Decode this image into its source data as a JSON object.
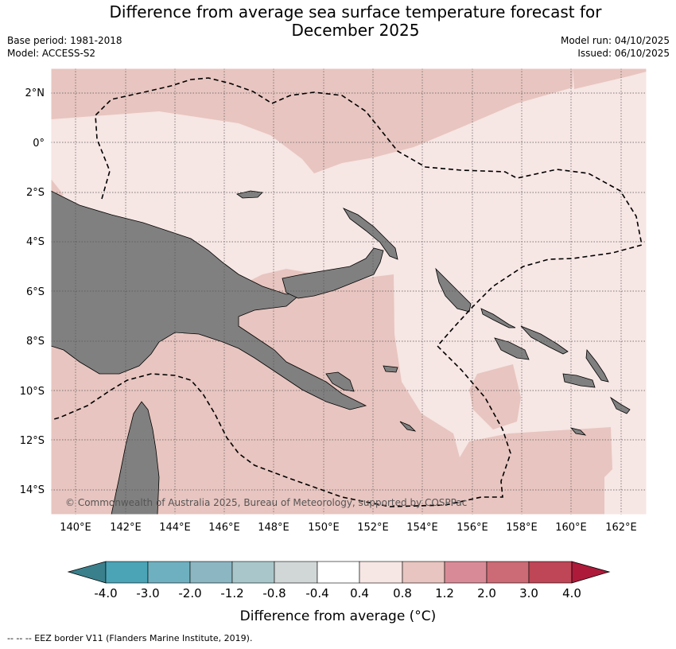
{
  "header": {
    "title_line1": "Difference from average sea surface temperature forecast for",
    "title_line2": "December 2025",
    "base_period": "Base period: 1981-2018",
    "model": "Model: ACCESS-S2",
    "model_run": "Model run: 04/10/2025",
    "issued": "Issued: 06/10/2025"
  },
  "map": {
    "lat_labels": [
      "2°N",
      "0°",
      "2°S",
      "4°S",
      "6°S",
      "8°S",
      "10°S",
      "12°S",
      "14°S"
    ],
    "lon_labels": [
      "140°E",
      "142°E",
      "144°E",
      "146°E",
      "148°E",
      "150°E",
      "152°E",
      "154°E",
      "156°E",
      "158°E",
      "160°E",
      "162°E"
    ],
    "copyright": "© Commonwealth of Australia 2025, Bureau of Meteorology, supported by COSPPac"
  },
  "colorbar": {
    "title": "Difference from average (°C)",
    "labels": [
      "-4.0",
      "-3.0",
      "-2.0",
      "-1.2",
      "-0.8",
      "-0.4",
      "0.4",
      "0.8",
      "1.2",
      "2.0",
      "3.0",
      "4.0"
    ],
    "colors": [
      "#3a808c",
      "#4aa4b6",
      "#6fb0c0",
      "#8bb6c2",
      "#a9c7cb",
      "#d1d6d6",
      "#ffffff",
      "#f6e6e4",
      "#e8c5c0",
      "#d88b96",
      "#cc6b75",
      "#be4656",
      "#ae1a3a"
    ]
  },
  "legend": {
    "footer": "-- -- -- EEZ border V11 (Flanders Marine Institute, 2019)."
  }
}
